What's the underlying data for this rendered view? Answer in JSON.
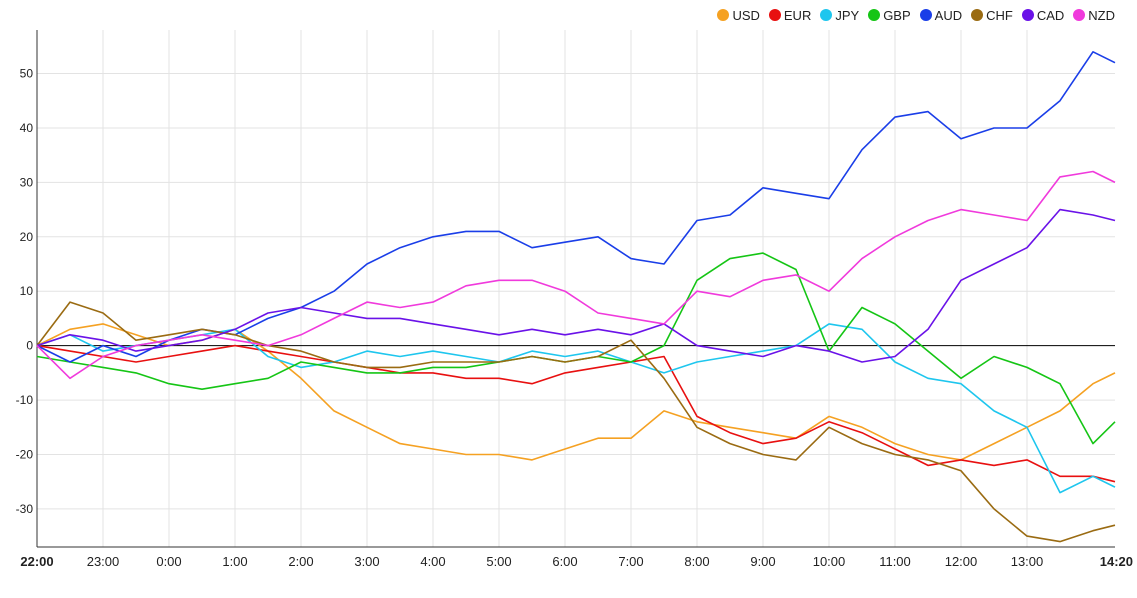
{
  "chart_data": {
    "type": "line",
    "legend_position": "top-right",
    "grid": true,
    "ylim": [
      -37,
      58
    ],
    "y_ticks": [
      -30,
      -20,
      -10,
      0,
      10,
      20,
      30,
      40,
      50
    ],
    "x_range": [
      "22:00",
      "14:20"
    ],
    "x_ticks": [
      {
        "label": "22:00",
        "bold": true
      },
      {
        "label": "23:00",
        "bold": false
      },
      {
        "label": "0:00",
        "bold": false
      },
      {
        "label": "1:00",
        "bold": false
      },
      {
        "label": "2:00",
        "bold": false
      },
      {
        "label": "3:00",
        "bold": false
      },
      {
        "label": "4:00",
        "bold": false
      },
      {
        "label": "5:00",
        "bold": false
      },
      {
        "label": "6:00",
        "bold": false
      },
      {
        "label": "7:00",
        "bold": false
      },
      {
        "label": "8:00",
        "bold": false
      },
      {
        "label": "9:00",
        "bold": false
      },
      {
        "label": "10:00",
        "bold": false
      },
      {
        "label": "11:00",
        "bold": false
      },
      {
        "label": "12:00",
        "bold": false
      },
      {
        "label": "13:00",
        "bold": false
      },
      {
        "label": "14:20",
        "bold": true
      }
    ],
    "series": [
      {
        "name": "USD",
        "color": "#f5a122",
        "x": [
          "22:00",
          "22:30",
          "23:00",
          "23:30",
          "0:00",
          "0:30",
          "1:00",
          "1:30",
          "2:00",
          "2:30",
          "3:00",
          "3:30",
          "4:00",
          "4:30",
          "5:00",
          "5:30",
          "6:00",
          "6:30",
          "7:00",
          "7:30",
          "8:00",
          "8:30",
          "9:00",
          "9:30",
          "10:00",
          "10:30",
          "11:00",
          "11:30",
          "12:00",
          "12:30",
          "13:00",
          "13:30",
          "14:00",
          "14:20"
        ],
        "y": [
          0,
          3,
          4,
          2,
          0,
          1,
          3,
          -1,
          -6,
          -12,
          -15,
          -18,
          -19,
          -20,
          -20,
          -21,
          -19,
          -17,
          -17,
          -12,
          -14,
          -15,
          -16,
          -17,
          -13,
          -15,
          -18,
          -20,
          -21,
          -18,
          -15,
          -12,
          -7,
          -5
        ]
      },
      {
        "name": "EUR",
        "color": "#e81010",
        "x": [
          "22:00",
          "22:30",
          "23:00",
          "23:30",
          "0:00",
          "0:30",
          "1:00",
          "1:30",
          "2:00",
          "2:30",
          "3:00",
          "3:30",
          "4:00",
          "4:30",
          "5:00",
          "5:30",
          "6:00",
          "6:30",
          "7:00",
          "7:30",
          "8:00",
          "8:30",
          "9:00",
          "9:30",
          "10:00",
          "10:30",
          "11:00",
          "11:30",
          "12:00",
          "12:30",
          "13:00",
          "13:30",
          "14:00",
          "14:20"
        ],
        "y": [
          0,
          -1,
          -2,
          -3,
          -2,
          -1,
          0,
          -1,
          -2,
          -3,
          -4,
          -5,
          -5,
          -6,
          -6,
          -7,
          -5,
          -4,
          -3,
          -2,
          -13,
          -16,
          -18,
          -17,
          -14,
          -16,
          -19,
          -22,
          -21,
          -22,
          -21,
          -24,
          -24,
          -25
        ]
      },
      {
        "name": "JPY",
        "color": "#1ec6ee",
        "x": [
          "22:00",
          "22:30",
          "23:00",
          "23:30",
          "0:00",
          "0:30",
          "1:00",
          "1:30",
          "2:00",
          "2:30",
          "3:00",
          "3:30",
          "4:00",
          "4:30",
          "5:00",
          "5:30",
          "6:00",
          "6:30",
          "7:00",
          "7:30",
          "8:00",
          "8:30",
          "9:00",
          "9:30",
          "10:00",
          "10:30",
          "11:00",
          "11:30",
          "12:00",
          "12:30",
          "13:00",
          "13:30",
          "14:00",
          "14:20"
        ],
        "y": [
          0,
          2,
          -1,
          0,
          1,
          2,
          3,
          -2,
          -4,
          -3,
          -1,
          -2,
          -1,
          -2,
          -3,
          -1,
          -2,
          -1,
          -3,
          -5,
          -3,
          -2,
          -1,
          0,
          4,
          3,
          -3,
          -6,
          -7,
          -12,
          -15,
          -27,
          -24,
          -26
        ]
      },
      {
        "name": "GBP",
        "color": "#15c515",
        "x": [
          "22:00",
          "22:30",
          "23:00",
          "23:30",
          "0:00",
          "0:30",
          "1:00",
          "1:30",
          "2:00",
          "2:30",
          "3:00",
          "3:30",
          "4:00",
          "4:30",
          "5:00",
          "5:30",
          "6:00",
          "6:30",
          "7:00",
          "7:30",
          "8:00",
          "8:30",
          "9:00",
          "9:30",
          "10:00",
          "10:30",
          "11:00",
          "11:30",
          "12:00",
          "12:30",
          "13:00",
          "13:30",
          "14:00",
          "14:20"
        ],
        "y": [
          -2,
          -3,
          -4,
          -5,
          -7,
          -8,
          -7,
          -6,
          -3,
          -4,
          -5,
          -5,
          -4,
          -4,
          -3,
          -2,
          -3,
          -2,
          -3,
          0,
          12,
          16,
          17,
          14,
          -1,
          7,
          4,
          -1,
          -6,
          -2,
          -4,
          -7,
          -18,
          -14
        ]
      },
      {
        "name": "AUD",
        "color": "#1a3ee8",
        "x": [
          "22:00",
          "22:30",
          "23:00",
          "23:30",
          "0:00",
          "0:30",
          "1:00",
          "1:30",
          "2:00",
          "2:30",
          "3:00",
          "3:30",
          "4:00",
          "4:30",
          "5:00",
          "5:30",
          "6:00",
          "6:30",
          "7:00",
          "7:30",
          "8:00",
          "8:30",
          "9:00",
          "9:30",
          "10:00",
          "10:30",
          "11:00",
          "11:30",
          "12:00",
          "12:30",
          "13:00",
          "13:30",
          "14:00",
          "14:20"
        ],
        "y": [
          0,
          -3,
          0,
          -2,
          1,
          3,
          2,
          5,
          7,
          10,
          15,
          18,
          20,
          21,
          21,
          18,
          19,
          20,
          16,
          15,
          23,
          24,
          29,
          28,
          27,
          36,
          42,
          43,
          38,
          40,
          40,
          45,
          54,
          52
        ]
      },
      {
        "name": "CHF",
        "color": "#9a6b12",
        "x": [
          "22:00",
          "22:30",
          "23:00",
          "23:30",
          "0:00",
          "0:30",
          "1:00",
          "1:30",
          "2:00",
          "2:30",
          "3:00",
          "3:30",
          "4:00",
          "4:30",
          "5:00",
          "5:30",
          "6:00",
          "6:30",
          "7:00",
          "7:30",
          "8:00",
          "8:30",
          "9:00",
          "9:30",
          "10:00",
          "10:30",
          "11:00",
          "11:30",
          "12:00",
          "12:30",
          "13:00",
          "13:30",
          "14:00",
          "14:20"
        ],
        "y": [
          0,
          8,
          6,
          1,
          2,
          3,
          2,
          0,
          -1,
          -3,
          -4,
          -4,
          -3,
          -3,
          -3,
          -2,
          -3,
          -2,
          1,
          -6,
          -15,
          -18,
          -20,
          -21,
          -15,
          -18,
          -20,
          -21,
          -23,
          -30,
          -35,
          -36,
          -34,
          -33
        ]
      },
      {
        "name": "CAD",
        "color": "#6a12e8",
        "x": [
          "22:00",
          "22:30",
          "23:00",
          "23:30",
          "0:00",
          "0:30",
          "1:00",
          "1:30",
          "2:00",
          "2:30",
          "3:00",
          "3:30",
          "4:00",
          "4:30",
          "5:00",
          "5:30",
          "6:00",
          "6:30",
          "7:00",
          "7:30",
          "8:00",
          "8:30",
          "9:00",
          "9:30",
          "10:00",
          "10:30",
          "11:00",
          "11:30",
          "12:00",
          "12:30",
          "13:00",
          "13:30",
          "14:00",
          "14:20"
        ],
        "y": [
          0,
          2,
          1,
          -1,
          0,
          1,
          3,
          6,
          7,
          6,
          5,
          5,
          4,
          3,
          2,
          3,
          2,
          3,
          2,
          4,
          0,
          -1,
          -2,
          0,
          -1,
          -3,
          -2,
          3,
          12,
          15,
          18,
          25,
          24,
          23
        ]
      },
      {
        "name": "NZD",
        "color": "#f03adc",
        "x": [
          "22:00",
          "22:30",
          "23:00",
          "23:30",
          "0:00",
          "0:30",
          "1:00",
          "1:30",
          "2:00",
          "2:30",
          "3:00",
          "3:30",
          "4:00",
          "4:30",
          "5:00",
          "5:30",
          "6:00",
          "6:30",
          "7:00",
          "7:30",
          "8:00",
          "8:30",
          "9:00",
          "9:30",
          "10:00",
          "10:30",
          "11:00",
          "11:30",
          "12:00",
          "12:30",
          "13:00",
          "13:30",
          "14:00",
          "14:20"
        ],
        "y": [
          0,
          -6,
          -2,
          0,
          1,
          2,
          1,
          0,
          2,
          5,
          8,
          7,
          8,
          11,
          12,
          12,
          10,
          6,
          5,
          4,
          10,
          9,
          12,
          13,
          10,
          16,
          20,
          23,
          25,
          24,
          23,
          31,
          32,
          30
        ]
      }
    ]
  }
}
